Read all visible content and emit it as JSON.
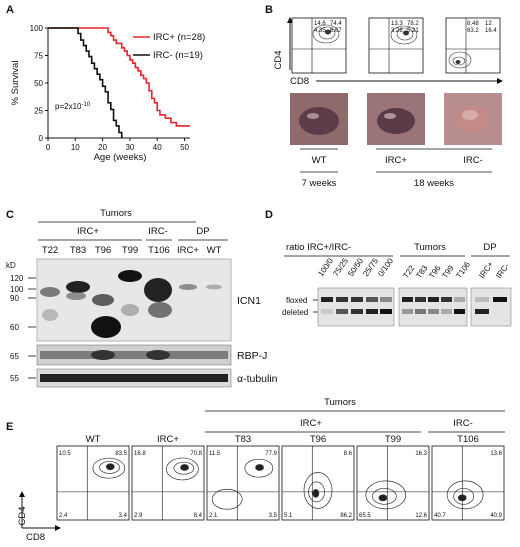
{
  "panels": {
    "a": "A",
    "b": "B",
    "c": "C",
    "d": "D",
    "e": "E"
  },
  "chart_data": {
    "type": "line",
    "subtype": "kaplan-meier survival",
    "xlabel": "Age (weeks)",
    "ylabel": "% Survival",
    "xlim": [
      0,
      52
    ],
    "ylim": [
      0,
      100
    ],
    "xticks": [
      "0",
      "10",
      "20",
      "30",
      "40",
      "50"
    ],
    "yticks": [
      "0",
      "25",
      "50",
      "75",
      "100"
    ],
    "legend_placement": "top-right",
    "annotation": "p=2x10",
    "annotation_exp": "-10",
    "series": [
      {
        "name": "IRC+ (n=28)",
        "color": "#e8262b",
        "x": [
          0,
          19,
          22,
          23,
          24,
          25,
          27,
          28,
          29,
          30,
          31,
          32,
          33,
          34,
          35,
          36,
          37,
          38,
          39,
          40,
          41,
          43,
          45,
          47,
          52
        ],
        "y": [
          100,
          100,
          96,
          93,
          89,
          86,
          82,
          79,
          75,
          71,
          68,
          64,
          61,
          57,
          54,
          50,
          43,
          36,
          32,
          25,
          21,
          18,
          14,
          11,
          11
        ]
      },
      {
        "name": "IRC- (n=19)",
        "color": "#111111",
        "x": [
          0,
          10,
          11,
          12,
          13,
          14,
          15,
          16,
          17,
          18,
          19,
          20,
          21,
          22,
          23,
          24,
          25,
          26,
          27
        ],
        "y": [
          100,
          100,
          95,
          89,
          84,
          79,
          74,
          68,
          63,
          58,
          53,
          47,
          42,
          32,
          26,
          16,
          11,
          5,
          0
        ]
      }
    ]
  },
  "panel_b": {
    "axis_y": "CD4",
    "axis_x": "CD8",
    "plots": [
      {
        "ul": "14.6",
        "ur": "74.4",
        "ll": "4.35",
        "lr": "6.67"
      },
      {
        "ul": "13.3",
        "ur": "78.2",
        "ll": "3.28",
        "lr": "5.21"
      },
      {
        "ul": "8.48",
        "ur": "12",
        "ll": "63.2",
        "lr": "16.4"
      }
    ],
    "photo_labels": [
      "WT",
      "IRC+",
      "IRC-"
    ],
    "ages": [
      "7 weeks",
      "18 weeks"
    ]
  },
  "panel_c": {
    "header_tumors": "Tumors",
    "group_irc_plus": "IRC+",
    "group_irc_minus": "IRC-",
    "group_dp": "DP",
    "lanes": [
      "T22",
      "T83",
      "T96",
      "T99",
      "T106",
      "IRC+",
      "WT"
    ],
    "kd_label": "kD",
    "markers": [
      "120",
      "100",
      "90",
      "60",
      "65",
      "55"
    ],
    "bands": [
      "ICN1",
      "RBP-J",
      "α-tubulin"
    ]
  },
  "panel_d": {
    "ratio_label": "ratio IRC+/IRC-",
    "ratio_lanes": [
      "100/0",
      "75/25",
      "50/50",
      "25/75",
      "0/100"
    ],
    "tumors_label": "Tumors",
    "tumor_lanes": [
      "T22",
      "T83",
      "T96",
      "T99",
      "T106"
    ],
    "dp_label": "DP",
    "dp_lanes": [
      "IRC+",
      "IRC-"
    ],
    "floxed": "floxed",
    "deleted": "deleted"
  },
  "panel_e": {
    "tumors_label": "Tumors",
    "irc_plus_label": "IRC+",
    "irc_minus_label": "IRC-",
    "axis_y": "CD4",
    "axis_x": "CD8",
    "plots": [
      {
        "name": "WT",
        "ul": "10.5",
        "ur": "83.5",
        "ll": "2.4",
        "lr": "3.4"
      },
      {
        "name": "IRC+",
        "ul": "16.8",
        "ur": "70.8",
        "ll": "2.9",
        "lr": "8.4"
      },
      {
        "name": "T83",
        "ul": "11.5",
        "ur": "77.9",
        "ll": "2.1",
        "lr": "3.5"
      },
      {
        "name": "T96",
        "ul": "",
        "ur": "8.6",
        "ll": "5.1",
        "lr": "86.2"
      },
      {
        "name": "T99",
        "ul": "",
        "ur": "16.3",
        "ll": "65.5",
        "lr": "12.6"
      },
      {
        "name": "T106",
        "ul": "",
        "ur": "13.6",
        "ll": "40.7",
        "lr": "40.9"
      }
    ]
  }
}
